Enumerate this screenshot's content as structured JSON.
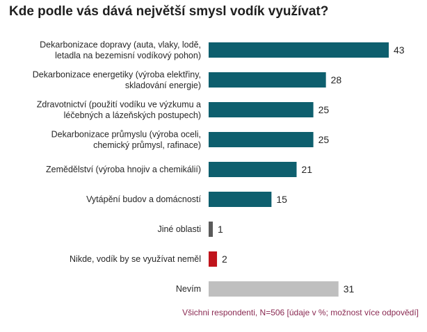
{
  "title": "Kde podle vás dává největší smysl vodík využívat?",
  "footnote": "Všichni respondenti, N=506 [údaje v %; možnost více odpovědí]",
  "colors": {
    "main": "#0e5f6e",
    "other": "#5a5a5a",
    "nowhere": "#c0141c",
    "unknown": "#bfbfbf"
  },
  "chart_data": {
    "type": "bar",
    "orientation": "horizontal",
    "title": "Kde podle vás dává největší smysl vodík využívat?",
    "unit": "%",
    "categories": [
      [
        "Dekarbonizace dopravy (auta, vlaky, lodě,",
        "letadla na bezemisní vodíkový pohon)"
      ],
      [
        "Dekarbonizace energetiky (výroba elektřiny,",
        "skladování energie)"
      ],
      [
        "Zdravotnictví (použití vodíku ve výzkumu a",
        "léčebných a lázeňských postupech)"
      ],
      [
        "Dekarbonizace průmyslu (výroba oceli,",
        "chemický průmysl, rafinace)"
      ],
      [
        "Zemědělství (výroba hnojiv a chemikálií)"
      ],
      [
        "Vytápění budov a domácností"
      ],
      [
        "Jiné oblasti"
      ],
      [
        "Nikde, vodík by se využívat neměl"
      ],
      [
        "Nevím"
      ]
    ],
    "values": [
      43,
      28,
      25,
      25,
      21,
      15,
      1,
      2,
      31
    ],
    "bar_colors": [
      "main",
      "main",
      "main",
      "main",
      "main",
      "main",
      "other",
      "nowhere",
      "unknown"
    ],
    "xlim": [
      0,
      43
    ],
    "grid": false,
    "legend": "none"
  }
}
